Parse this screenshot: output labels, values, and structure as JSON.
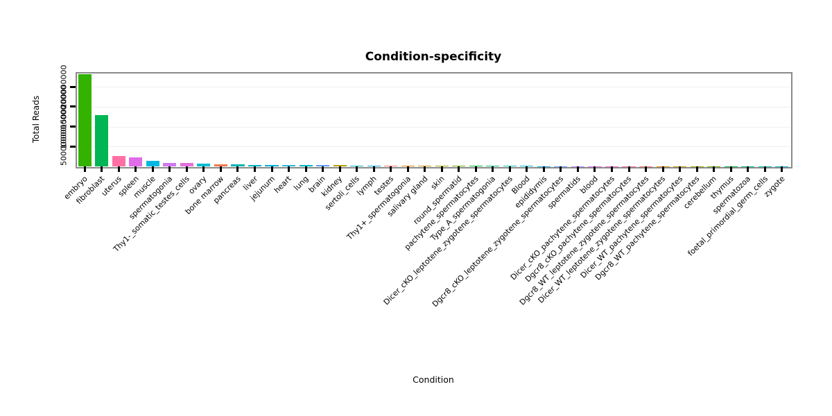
{
  "chart_data": {
    "type": "bar",
    "title": "Condition-specificity",
    "xlabel": "Condition",
    "ylabel": "Total Reads",
    "ylim": [
      0,
      235000000
    ],
    "yticks": [
      50000000,
      100000000,
      150000000,
      200000000
    ],
    "ytick_labels": [
      "50000000",
      "100000000",
      "150000000",
      "200000000"
    ],
    "grid": "light-horizontal",
    "legend": "none",
    "categories": [
      "embryo",
      "fibroblast",
      "uterus",
      "spleen",
      "muscle",
      "spermatogonia",
      "Thy1-_somatic_testes_cells",
      "ovary",
      "bone marrow",
      "pancreas",
      "liver",
      "jejunum",
      "heart",
      "lung",
      "brain",
      "kidney",
      "sertoli_cells",
      "lymph",
      "testes",
      "Thy1+_spermatogonia",
      "salivary gland",
      "skin",
      "round_spermatid",
      "pachytene_spermatocytes",
      "Type_A_spermatogonia",
      "Dicer_cKO_leptotene_zygotene_spermatocytes",
      "Blood",
      "epididymis",
      "Dgcr8_cKO_leptotene_zygotene_spermatocytes",
      "spermatids",
      "blood",
      "Dicer_cKO_pachytene_spermatocytes",
      "Dgcr8_cKO_pachytene_spermatocytes",
      "Dgcr8_WT_leptotene_zygotene_spermatocytes",
      "Dicer_WT_leptotene_zygotene_spermatocytes",
      "Dicer_WT_pachytene_spermatocytes",
      "Dgcr8_WT_pachytene_spermatocytes",
      "cerebellum",
      "thymus",
      "spermatozoa",
      "foetal_primordial_germ_cells",
      "zygote"
    ],
    "values": [
      232000000,
      128000000,
      26000000,
      22000000,
      14000000,
      9000000,
      8000000,
      6500000,
      6000000,
      4500000,
      4000000,
      3800000,
      3500000,
      3200000,
      3000000,
      2800000,
      2600000,
      2400000,
      2000000,
      1800000,
      1600000,
      1400000,
      1300000,
      1200000,
      1100000,
      1000000,
      900000,
      850000,
      800000,
      750000,
      700000,
      650000,
      600000,
      550000,
      500000,
      450000,
      400000,
      350000,
      300000,
      250000,
      200000,
      150000
    ],
    "colors": [
      "#33b200",
      "#00b554",
      "#ff6fa5",
      "#e06ce8",
      "#00b8e0",
      "#cf78f0",
      "#e570dd",
      "#00bcd0",
      "#f07850",
      "#00b5ad",
      "#00b0c8",
      "#00aee0",
      "#30b8d8",
      "#00b4c0",
      "#619cff",
      "#b0a000",
      "#00b8b8",
      "#00acd8",
      "#f8766d",
      "#e58700",
      "#c99800",
      "#a3a500",
      "#6bb100",
      "#00ba38",
      "#00bf7d",
      "#00c0af",
      "#00bcd8",
      "#00b0f6",
      "#619cff",
      "#b983ff",
      "#e76bf3",
      "#fd61d1",
      "#ff67a4",
      "#f8766d",
      "#e58700",
      "#c99800",
      "#a3a500",
      "#6bb100",
      "#00ba38",
      "#00bf7d",
      "#00c0af",
      "#00bcd8"
    ],
    "bar_gap_fraction": 0.22
  }
}
